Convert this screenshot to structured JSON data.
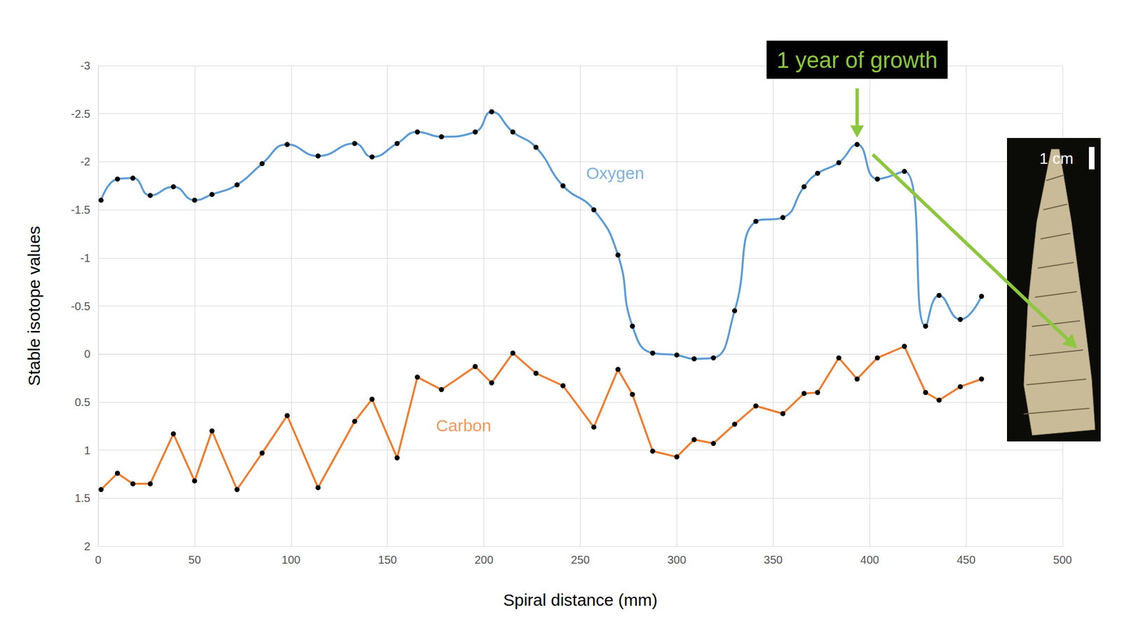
{
  "chart_data": {
    "type": "line",
    "xlabel": "Spiral distance (mm)",
    "ylabel": "Stable isotope values",
    "x": [
      1.5,
      10,
      18,
      27,
      39,
      50,
      59,
      72,
      85,
      98,
      114,
      133,
      142,
      155,
      165.5,
      178,
      195.5,
      204,
      215,
      227,
      241,
      257,
      269.5,
      277,
      287.5,
      300,
      309,
      319,
      330,
      341,
      355,
      366,
      373,
      384,
      393.5,
      404,
      418,
      429,
      436,
      447,
      458
    ],
    "series": [
      {
        "name": "Oxygen",
        "color": "#5b9bd5",
        "line_style": "smooth",
        "marker": "circle",
        "values": [
          -1.6,
          -1.82,
          -1.83,
          -1.65,
          -1.74,
          -1.6,
          -1.66,
          -1.76,
          -1.98,
          -2.18,
          -2.06,
          -2.19,
          -2.05,
          -2.19,
          -2.31,
          -2.26,
          -2.31,
          -2.52,
          -2.31,
          -2.15,
          -1.75,
          -1.5,
          -1.03,
          -0.29,
          -0.01,
          0.01,
          0.05,
          0.04,
          -0.45,
          -1.38,
          -1.42,
          -1.74,
          -1.88,
          -1.99,
          -2.18,
          -1.82,
          -1.9,
          -0.29,
          -0.61,
          -0.36,
          -0.6
        ]
      },
      {
        "name": "Carbon",
        "color": "#ed7d31",
        "line_style": "straight",
        "marker": "circle",
        "values": [
          1.41,
          1.24,
          1.35,
          1.35,
          0.83,
          1.32,
          0.8,
          1.41,
          1.03,
          0.64,
          1.39,
          0.7,
          0.47,
          1.08,
          0.24,
          0.37,
          0.13,
          0.3,
          -0.01,
          0.2,
          0.33,
          0.76,
          0.16,
          0.42,
          1.01,
          1.07,
          0.89,
          0.93,
          0.73,
          0.54,
          0.62,
          0.41,
          0.4,
          0.04,
          0.26,
          0.04,
          -0.08,
          0.4,
          0.48,
          0.34,
          0.26
        ]
      }
    ],
    "xlim": [
      0,
      500
    ],
    "xticks": [
      0,
      50,
      100,
      150,
      200,
      250,
      300,
      350,
      400,
      450,
      500
    ],
    "ylim": [
      2,
      -3
    ],
    "yticks": [
      2,
      1.5,
      1,
      0.5,
      0,
      -0.5,
      -1,
      -1.5,
      -2,
      -2.5,
      -3
    ],
    "grid": true,
    "annotations": [
      {
        "text": "Oxygen",
        "x": 268,
        "y": -1.88,
        "color": "#5b9bd5",
        "type": "label"
      },
      {
        "text": "Carbon",
        "x": 189.5,
        "y": 0.74,
        "color": "#ed7d31",
        "type": "label"
      },
      {
        "text": "1 year of growth",
        "x": 393.5,
        "y": -2.18,
        "color": "#8dc63f",
        "type": "callout"
      }
    ],
    "image_scale_label": "1 cm"
  }
}
